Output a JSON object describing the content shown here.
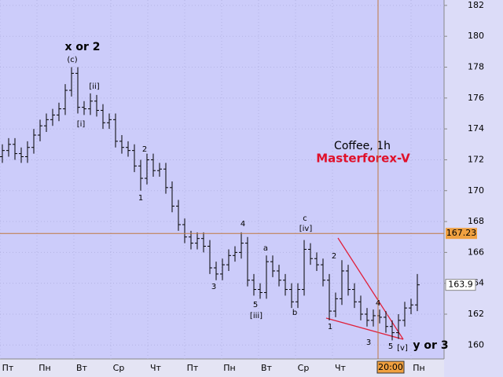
{
  "chart_data": {
    "type": "ohlc",
    "title": "Coffee, 1h",
    "subtitle": "Masterforex-V",
    "categories": [
      "Пт",
      "Пн",
      "Вт",
      "Ср",
      "Чт",
      "Пт",
      "Пн",
      "Вт",
      "Ср",
      "Чт",
      "Пн"
    ],
    "open": [
      172.2,
      172.6,
      173.0,
      172.4,
      172.2,
      172.8,
      173.6,
      174.2,
      174.6,
      174.9,
      175.3,
      176.5,
      177.6,
      175.4,
      175.3,
      175.8,
      175.2,
      174.4,
      174.6,
      173.2,
      172.8,
      172.6,
      171.6,
      170.8,
      172.0,
      171.3,
      171.4,
      170.2,
      169.0,
      167.8,
      167.0,
      166.6,
      166.9,
      166.4,
      165.0,
      164.6,
      165.2,
      165.8,
      166.0,
      166.6,
      164.2,
      163.6,
      163.4,
      165.4,
      164.8,
      164.2,
      163.6,
      162.8,
      163.6,
      166.2,
      165.6,
      165.2,
      164.2,
      162.2,
      163.0,
      164.8,
      163.6,
      162.8,
      162.0,
      161.6,
      161.9,
      161.8,
      161.2,
      160.8,
      161.6,
      162.4,
      162.6
    ],
    "high": [
      173.0,
      173.4,
      173.4,
      172.8,
      173.2,
      174.0,
      174.6,
      175.0,
      175.3,
      175.7,
      176.9,
      178.0,
      178.0,
      175.8,
      176.3,
      176.2,
      175.6,
      175.0,
      175.0,
      173.6,
      173.2,
      173.0,
      172.0,
      172.4,
      172.4,
      171.8,
      171.8,
      170.6,
      169.4,
      168.2,
      167.4,
      167.3,
      167.3,
      166.8,
      165.4,
      165.6,
      166.2,
      166.4,
      167.3,
      167.0,
      164.6,
      164.0,
      165.8,
      165.8,
      165.2,
      164.6,
      164.0,
      164.0,
      166.8,
      166.6,
      166.0,
      165.6,
      164.6,
      163.4,
      165.5,
      165.2,
      164.0,
      163.2,
      162.4,
      162.3,
      162.3,
      162.2,
      161.6,
      162.0,
      162.8,
      163.0,
      164.6
    ],
    "low": [
      171.8,
      172.2,
      172.0,
      171.8,
      171.8,
      172.4,
      173.2,
      173.8,
      174.2,
      174.5,
      174.9,
      176.1,
      175.0,
      174.9,
      174.9,
      174.8,
      174.0,
      174.0,
      172.8,
      172.4,
      172.2,
      171.2,
      170.0,
      170.4,
      170.9,
      170.9,
      169.8,
      168.6,
      167.4,
      166.6,
      166.2,
      166.2,
      166.0,
      164.6,
      164.2,
      164.2,
      164.8,
      165.4,
      165.6,
      163.8,
      163.2,
      163.0,
      163.0,
      164.4,
      163.8,
      163.2,
      162.4,
      162.4,
      163.2,
      165.2,
      164.8,
      163.8,
      161.6,
      161.8,
      162.6,
      163.2,
      162.4,
      161.6,
      161.2,
      161.2,
      161.4,
      160.8,
      160.3,
      160.4,
      161.2,
      162.0,
      162.2
    ],
    "close": [
      172.6,
      173.0,
      172.4,
      172.2,
      172.8,
      173.6,
      174.2,
      174.6,
      174.9,
      175.3,
      176.5,
      177.6,
      175.4,
      175.3,
      175.8,
      175.2,
      174.4,
      174.6,
      173.2,
      172.8,
      172.6,
      171.6,
      170.8,
      172.0,
      171.3,
      171.4,
      170.2,
      169.0,
      167.8,
      167.0,
      166.6,
      166.9,
      166.4,
      165.0,
      164.6,
      165.2,
      165.8,
      166.0,
      166.6,
      164.2,
      163.6,
      163.4,
      165.4,
      164.8,
      164.2,
      163.6,
      162.8,
      163.6,
      166.2,
      165.6,
      165.2,
      164.2,
      162.2,
      163.0,
      164.8,
      163.6,
      162.8,
      162.0,
      161.6,
      161.9,
      161.8,
      161.2,
      160.8,
      161.6,
      162.4,
      162.6,
      163.9
    ],
    "color": "#000000",
    "ylim": [
      159.1,
      182.35
    ],
    "yticks": [
      160,
      162,
      164,
      166,
      168,
      170,
      172,
      174,
      176,
      178,
      180,
      182
    ],
    "cursor": {
      "price": 167.23,
      "time_label": "20:00"
    },
    "last_price": 163.9,
    "annotations": [
      "x or 2",
      "(c)",
      "[ii]",
      "[i]",
      "2",
      "1",
      "4",
      "3",
      "5",
      "[iii]",
      "a",
      "b",
      "c",
      "[iv]",
      "2",
      "1",
      "4",
      "3",
      "5",
      "[v]",
      "y or 3"
    ]
  }
}
